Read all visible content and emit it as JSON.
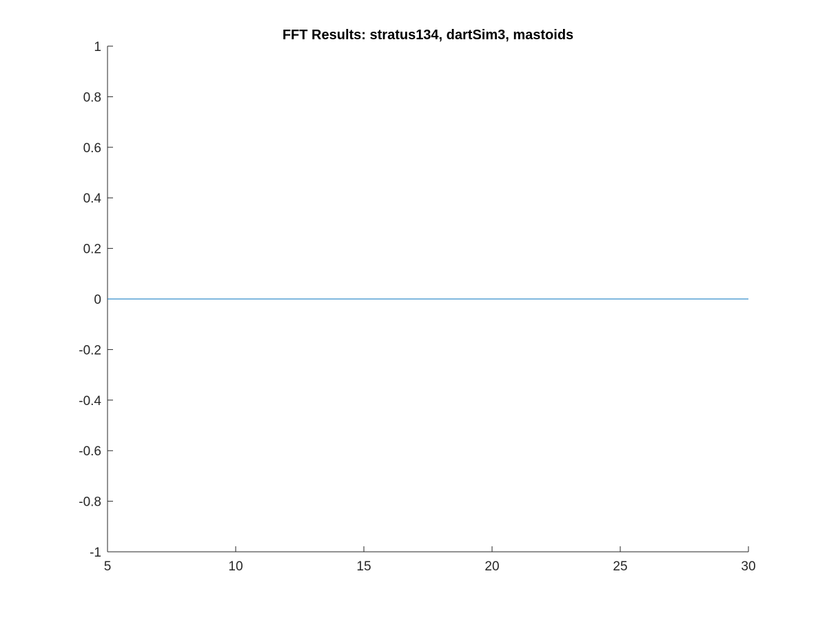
{
  "chart_data": {
    "type": "line",
    "title": "FFT Results: stratus134, dartSim3, mastoids",
    "xlabel": "",
    "ylabel": "",
    "xlim": [
      5,
      30
    ],
    "ylim": [
      -1,
      1
    ],
    "xticks": [
      5,
      10,
      15,
      20,
      25,
      30
    ],
    "xtick_labels": [
      "5",
      "10",
      "15",
      "20",
      "25",
      "30"
    ],
    "yticks": [
      -1,
      -0.8,
      -0.6,
      -0.4,
      -0.2,
      0,
      0.2,
      0.4,
      0.6,
      0.8,
      1
    ],
    "ytick_labels": [
      "-1",
      "-0.8",
      "-0.6",
      "-0.4",
      "-0.2",
      "0",
      "0.2",
      "0.4",
      "0.6",
      "0.8",
      "1"
    ],
    "grid": false,
    "series": [
      {
        "color": "#0072BD",
        "x": [
          5,
          30
        ],
        "y": [
          0,
          0
        ]
      }
    ]
  }
}
